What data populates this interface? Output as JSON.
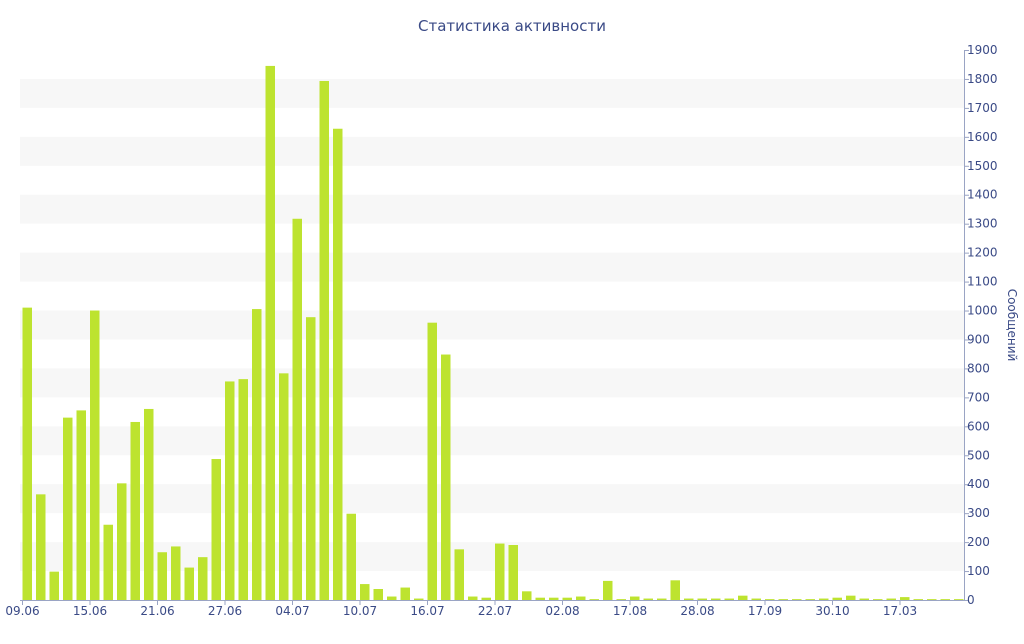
{
  "chart_data": {
    "type": "bar",
    "title": "Статистика активности",
    "xlabel": "",
    "ylabel": "Сообщений",
    "ylim": [
      0,
      1900
    ],
    "yticks": [
      0,
      100,
      200,
      300,
      400,
      500,
      600,
      700,
      800,
      900,
      1000,
      1100,
      1200,
      1300,
      1400,
      1500,
      1600,
      1700,
      1800,
      1900
    ],
    "y_axis_position": "right",
    "grid": "alternating horizontal bands",
    "legend": "none",
    "bar_color": "#bde32f",
    "band_color": "#f7f7f7",
    "text_color": "#3a4a86",
    "x_tick_labels": [
      {
        "index": 0,
        "label": "09.06"
      },
      {
        "index": 5,
        "label": "15.06"
      },
      {
        "index": 10,
        "label": "21.06"
      },
      {
        "index": 15,
        "label": "27.06"
      },
      {
        "index": 20,
        "label": "04.07"
      },
      {
        "index": 25,
        "label": "10.07"
      },
      {
        "index": 30,
        "label": "16.07"
      },
      {
        "index": 35,
        "label": "22.07"
      },
      {
        "index": 40,
        "label": "02.08"
      },
      {
        "index": 45,
        "label": "17.08"
      },
      {
        "index": 50,
        "label": "28.08"
      },
      {
        "index": 55,
        "label": "17.09"
      },
      {
        "index": 60,
        "label": "30.10"
      },
      {
        "index": 65,
        "label": "17.03"
      }
    ],
    "values": [
      1010,
      365,
      98,
      630,
      655,
      1000,
      260,
      403,
      615,
      660,
      165,
      185,
      112,
      148,
      487,
      755,
      763,
      1005,
      1845,
      783,
      1317,
      977,
      1793,
      1628,
      298,
      55,
      38,
      12,
      43,
      5,
      958,
      848,
      175,
      12,
      8,
      195,
      190,
      30,
      8,
      8,
      8,
      12,
      3,
      66,
      3,
      12,
      5,
      5,
      68,
      5,
      5,
      5,
      5,
      15,
      5,
      3,
      3,
      3,
      3,
      5,
      8,
      15,
      5,
      3,
      5,
      10,
      3,
      3,
      3,
      3
    ]
  }
}
